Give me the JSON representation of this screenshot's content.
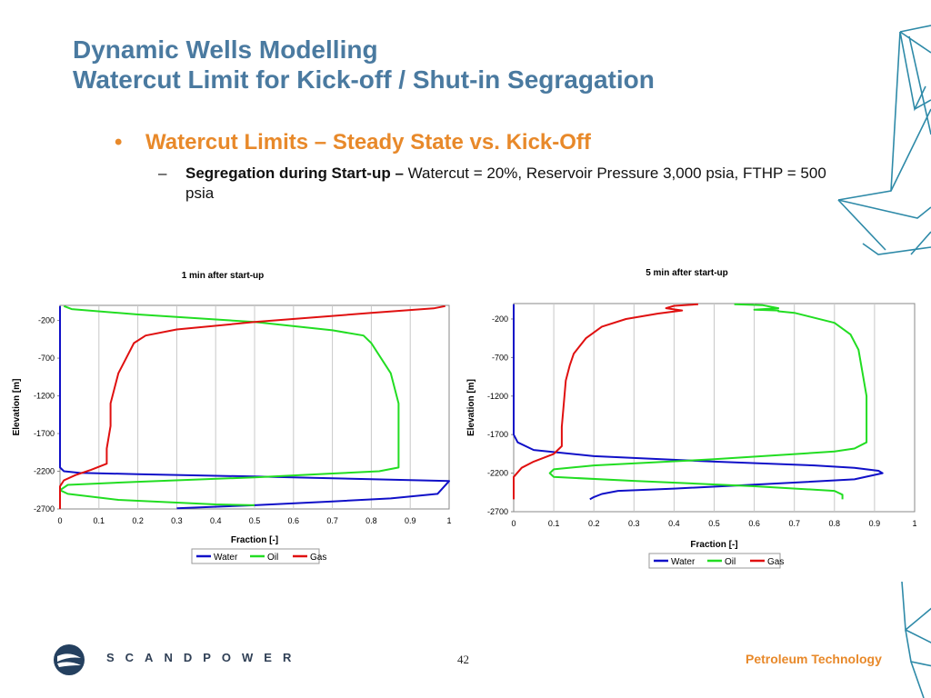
{
  "slide": {
    "title_line1": "Dynamic Wells Modelling",
    "title_line2": "Watercut Limit for Kick-off / Shut-in Segragation",
    "bullet": "Watercut Limits – Steady State vs. Kick-Off",
    "bullet_marker": "•",
    "sub_dash": "–",
    "sub_bold": "Segregation during Start-up –",
    "sub_text": " Watercut = 20%, Reservoir Pressure 3,000 psia, FTHP = 500 psia",
    "page_number": "42",
    "brand": "SCANDPOWER",
    "division": "Petroleum Technology",
    "colors": {
      "title": "#4a7aa0",
      "accent": "#e8892a",
      "deco": "#2e8aa8"
    }
  },
  "chart_data": [
    {
      "type": "line",
      "title": "1 min after start-up",
      "xlabel": "Fraction [-]",
      "ylabel": "Elevation [m]",
      "xlim": [
        0,
        1
      ],
      "ylim": [
        -2700,
        0
      ],
      "xticks": [
        "0",
        "0.1",
        "0.2",
        "0.3",
        "0.4",
        "0.5",
        "0.6",
        "0.7",
        "0.8",
        "0.9",
        "1"
      ],
      "yticks": [
        "-200",
        "-700",
        "-1200",
        "-1700",
        "-2200",
        "-2700"
      ],
      "legend": "bottom",
      "grid": true,
      "series": [
        {
          "name": "Water",
          "color": "#1010c8",
          "points": [
            [
              0,
              -10
            ],
            [
              0,
              -2150
            ],
            [
              0.01,
              -2200
            ],
            [
              0.05,
              -2220
            ],
            [
              0.2,
              -2240
            ],
            [
              0.5,
              -2270
            ],
            [
              1.0,
              -2330
            ],
            [
              0.97,
              -2500
            ],
            [
              0.85,
              -2560
            ],
            [
              0.7,
              -2600
            ],
            [
              0.5,
              -2650
            ],
            [
              0.3,
              -2690
            ]
          ]
        },
        {
          "name": "Oil",
          "color": "#22dd22",
          "points": [
            [
              0.01,
              -10
            ],
            [
              0.03,
              -50
            ],
            [
              0.2,
              -120
            ],
            [
              0.5,
              -220
            ],
            [
              0.7,
              -330
            ],
            [
              0.78,
              -400
            ],
            [
              0.8,
              -500
            ],
            [
              0.85,
              -900
            ],
            [
              0.87,
              -1300
            ],
            [
              0.87,
              -1900
            ],
            [
              0.87,
              -2150
            ],
            [
              0.82,
              -2200
            ],
            [
              0.7,
              -2230
            ],
            [
              0.5,
              -2280
            ],
            [
              0.2,
              -2340
            ],
            [
              0.02,
              -2380
            ],
            [
              0.0,
              -2450
            ],
            [
              0.02,
              -2500
            ],
            [
              0.15,
              -2580
            ],
            [
              0.4,
              -2640
            ],
            [
              0.5,
              -2650
            ]
          ]
        },
        {
          "name": "Gas",
          "color": "#e01010",
          "points": [
            [
              0.99,
              -10
            ],
            [
              0.96,
              -40
            ],
            [
              0.8,
              -100
            ],
            [
              0.5,
              -220
            ],
            [
              0.3,
              -320
            ],
            [
              0.22,
              -400
            ],
            [
              0.19,
              -500
            ],
            [
              0.17,
              -700
            ],
            [
              0.15,
              -900
            ],
            [
              0.14,
              -1100
            ],
            [
              0.13,
              -1300
            ],
            [
              0.13,
              -1600
            ],
            [
              0.12,
              -1900
            ],
            [
              0.12,
              -2000
            ],
            [
              0.12,
              -2100
            ],
            [
              0.08,
              -2180
            ],
            [
              0.04,
              -2250
            ],
            [
              0.01,
              -2320
            ],
            [
              0.0,
              -2400
            ],
            [
              0.0,
              -2700
            ]
          ]
        }
      ]
    },
    {
      "type": "line",
      "title": "5 min after start-up",
      "xlabel": "Fraction [-]",
      "ylabel": "Elevation [m]",
      "xlim": [
        0,
        1
      ],
      "ylim": [
        -2700,
        0
      ],
      "xticks": [
        "0",
        "0.1",
        "0.2",
        "0.3",
        "0.4",
        "0.5",
        "0.6",
        "0.7",
        "0.8",
        "0.9",
        "1"
      ],
      "yticks": [
        "-200",
        "-700",
        "-1200",
        "-1700",
        "-2200",
        "-2700"
      ],
      "legend": "bottom",
      "grid": true,
      "series": [
        {
          "name": "Water",
          "color": "#1010c8",
          "points": [
            [
              0,
              -10
            ],
            [
              0,
              -1700
            ],
            [
              0.01,
              -1800
            ],
            [
              0.05,
              -1900
            ],
            [
              0.2,
              -1980
            ],
            [
              0.5,
              -2050
            ],
            [
              0.75,
              -2100
            ],
            [
              0.85,
              -2130
            ],
            [
              0.91,
              -2170
            ],
            [
              0.92,
              -2200
            ],
            [
              0.85,
              -2280
            ],
            [
              0.6,
              -2350
            ],
            [
              0.4,
              -2400
            ],
            [
              0.26,
              -2430
            ],
            [
              0.22,
              -2470
            ],
            [
              0.2,
              -2510
            ],
            [
              0.19,
              -2540
            ]
          ]
        },
        {
          "name": "Oil",
          "color": "#22dd22",
          "points": [
            [
              0.55,
              -10
            ],
            [
              0.62,
              -20
            ],
            [
              0.66,
              -60
            ],
            [
              0.6,
              -80
            ],
            [
              0.66,
              -90
            ],
            [
              0.66,
              -100
            ],
            [
              0.7,
              -120
            ],
            [
              0.8,
              -250
            ],
            [
              0.84,
              -400
            ],
            [
              0.86,
              -600
            ],
            [
              0.87,
              -900
            ],
            [
              0.88,
              -1200
            ],
            [
              0.88,
              -1500
            ],
            [
              0.88,
              -1800
            ],
            [
              0.85,
              -1880
            ],
            [
              0.8,
              -1920
            ],
            [
              0.5,
              -2020
            ],
            [
              0.2,
              -2100
            ],
            [
              0.1,
              -2150
            ],
            [
              0.09,
              -2200
            ],
            [
              0.1,
              -2250
            ],
            [
              0.3,
              -2300
            ],
            [
              0.6,
              -2370
            ],
            [
              0.8,
              -2430
            ],
            [
              0.82,
              -2480
            ],
            [
              0.82,
              -2540
            ]
          ]
        },
        {
          "name": "Gas",
          "color": "#e01010",
          "points": [
            [
              0.46,
              -10
            ],
            [
              0.4,
              -30
            ],
            [
              0.38,
              -60
            ],
            [
              0.42,
              -90
            ],
            [
              0.36,
              -130
            ],
            [
              0.28,
              -200
            ],
            [
              0.22,
              -300
            ],
            [
              0.18,
              -450
            ],
            [
              0.15,
              -650
            ],
            [
              0.14,
              -800
            ],
            [
              0.13,
              -1000
            ],
            [
              0.125,
              -1300
            ],
            [
              0.12,
              -1600
            ],
            [
              0.12,
              -1850
            ],
            [
              0.1,
              -1950
            ],
            [
              0.05,
              -2050
            ],
            [
              0.02,
              -2130
            ],
            [
              0.0,
              -2250
            ],
            [
              0.0,
              -2540
            ]
          ]
        }
      ]
    }
  ]
}
